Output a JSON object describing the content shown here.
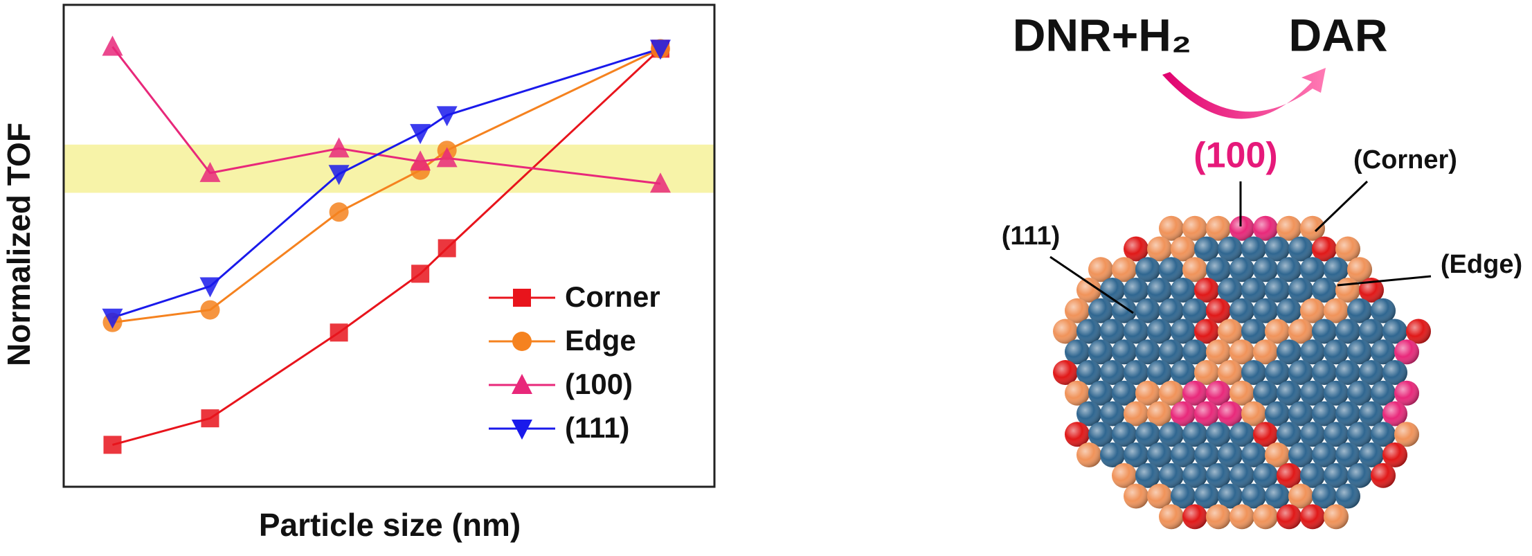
{
  "chart_data": {
    "type": "line",
    "xlabel": "Particle size (nm)",
    "ylabel": "Normalized TOF",
    "xlim": [
      0,
      100
    ],
    "ylim": [
      0,
      100
    ],
    "band": [
      61,
      71
    ],
    "band_color": "#f7f3a8",
    "x": [
      7.5,
      22.5,
      42.3,
      54.8,
      58.9,
      91.7
    ],
    "series": [
      {
        "name": "Corner",
        "color": "#e8141c",
        "marker": "square",
        "values": [
          8.7,
          14.2,
          32.0,
          44.2,
          49.5,
          90.9
        ]
      },
      {
        "name": "Edge",
        "color": "#f5821f",
        "marker": "circle",
        "values": [
          34.1,
          36.7,
          57.0,
          65.7,
          69.8,
          90.9
        ]
      },
      {
        "name": "(100)",
        "color": "#e8287a",
        "marker": "triangle-up",
        "values": [
          91.3,
          65.1,
          70.2,
          67.5,
          68.2,
          62.9
        ]
      },
      {
        "name": "(111)",
        "color": "#1a1aeb",
        "marker": "triangle-down",
        "values": [
          35.1,
          41.6,
          64.9,
          73.4,
          77.1,
          90.9
        ]
      }
    ],
    "legend": "lower-right"
  },
  "diagram": {
    "reactant": "DNR+H₂",
    "product": "DAR",
    "labels": {
      "facet100": "(100)",
      "corner": "(Corner)",
      "facet111": "(111)",
      "edge": "(Edge)"
    }
  }
}
